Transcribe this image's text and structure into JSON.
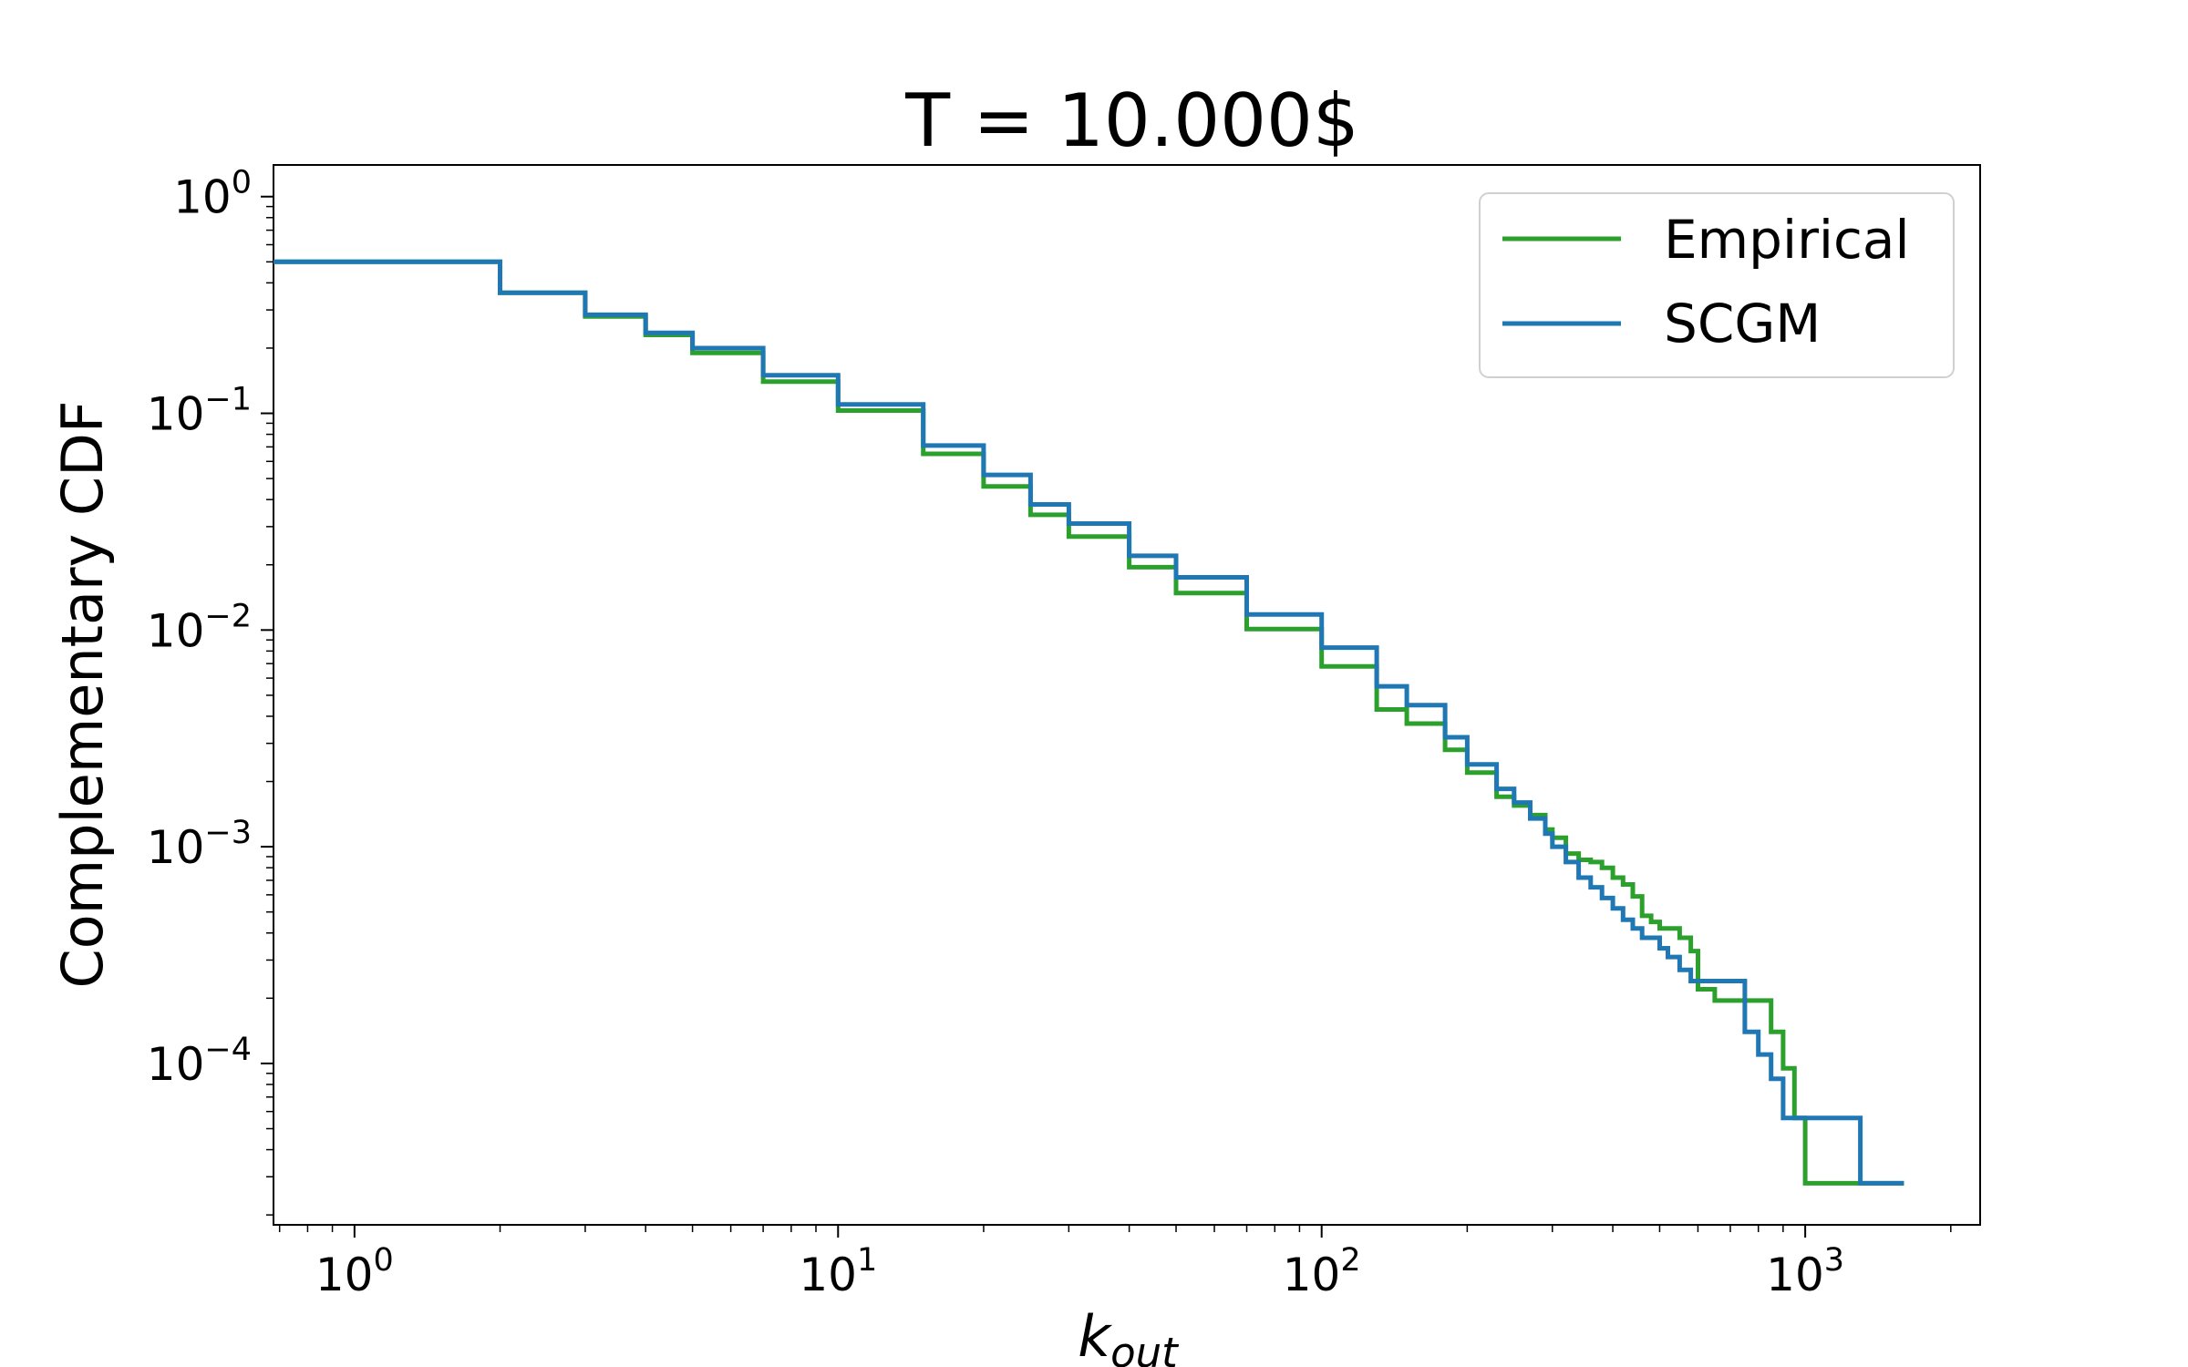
{
  "chart_data": {
    "type": "line",
    "title": "T = 10.000$",
    "xlabel_main": "k",
    "xlabel_sub": "out",
    "ylabel": "Complementary CDF",
    "xscale": "log",
    "yscale": "log",
    "xlim": [
      0.68,
      2300
    ],
    "ylim": [
      1.8e-05,
      1.4
    ],
    "grid": false,
    "legend_position": "top-right",
    "x_ticks": [
      {
        "value": 1,
        "base": "10",
        "exp": "0"
      },
      {
        "value": 10,
        "base": "10",
        "exp": "1"
      },
      {
        "value": 100,
        "base": "10",
        "exp": "2"
      },
      {
        "value": 1000,
        "base": "10",
        "exp": "3"
      }
    ],
    "y_ticks": [
      {
        "value": 1,
        "base": "10",
        "exp": "0"
      },
      {
        "value": 0.1,
        "base": "10",
        "exp": "−1"
      },
      {
        "value": 0.01,
        "base": "10",
        "exp": "−2"
      },
      {
        "value": 0.001,
        "base": "10",
        "exp": "−3"
      },
      {
        "value": 0.0001,
        "base": "10",
        "exp": "−4"
      }
    ],
    "series": [
      {
        "name": "Empirical",
        "color": "#2ca02c",
        "x": [
          0.5,
          1,
          2,
          3,
          4,
          5,
          7,
          10,
          15,
          20,
          25,
          30,
          40,
          50,
          70,
          100,
          130,
          150,
          180,
          200,
          230,
          250,
          270,
          290,
          300,
          320,
          340,
          360,
          380,
          400,
          420,
          440,
          460,
          480,
          500,
          520,
          550,
          580,
          600,
          650,
          700,
          750,
          800,
          850,
          900,
          950,
          1000,
          1300,
          1600
        ],
        "y": [
          0.5,
          0.5,
          0.36,
          0.28,
          0.23,
          0.19,
          0.14,
          0.103,
          0.065,
          0.046,
          0.034,
          0.027,
          0.0195,
          0.0148,
          0.0101,
          0.0068,
          0.0043,
          0.0037,
          0.0028,
          0.0022,
          0.0017,
          0.00155,
          0.0014,
          0.0012,
          0.0011,
          0.00093,
          0.00087,
          0.00085,
          0.0008,
          0.00072,
          0.00067,
          0.00059,
          0.00048,
          0.00045,
          0.00042,
          0.00042,
          0.00038,
          0.00033,
          0.00022,
          0.000195,
          0.000195,
          0.000195,
          0.000195,
          0.00014,
          9.5e-05,
          5.6e-05,
          2.8e-05,
          2.8e-05,
          2.8e-05
        ],
        "step": true
      },
      {
        "name": "SCGM",
        "color": "#1f77b4",
        "x": [
          0.5,
          1,
          2,
          3,
          4,
          5,
          7,
          10,
          15,
          20,
          25,
          30,
          40,
          50,
          70,
          100,
          130,
          150,
          180,
          200,
          230,
          250,
          270,
          290,
          300,
          320,
          340,
          360,
          380,
          400,
          420,
          440,
          460,
          480,
          500,
          520,
          550,
          580,
          600,
          650,
          700,
          750,
          800,
          850,
          900,
          950,
          1000,
          1300,
          1600
        ],
        "y": [
          0.5,
          0.5,
          0.36,
          0.285,
          0.235,
          0.2,
          0.15,
          0.11,
          0.071,
          0.052,
          0.038,
          0.031,
          0.022,
          0.0175,
          0.0118,
          0.0083,
          0.0055,
          0.0045,
          0.0032,
          0.0024,
          0.00185,
          0.0016,
          0.00135,
          0.00115,
          0.001,
          0.00085,
          0.00072,
          0.00065,
          0.00058,
          0.00052,
          0.00046,
          0.00042,
          0.00038,
          0.00038,
          0.00034,
          0.00031,
          0.00027,
          0.00024,
          0.00024,
          0.00024,
          0.00024,
          0.00014,
          0.00011,
          8.5e-05,
          5.6e-05,
          5.6e-05,
          5.6e-05,
          2.8e-05,
          2.8e-05
        ],
        "step": true
      }
    ]
  }
}
